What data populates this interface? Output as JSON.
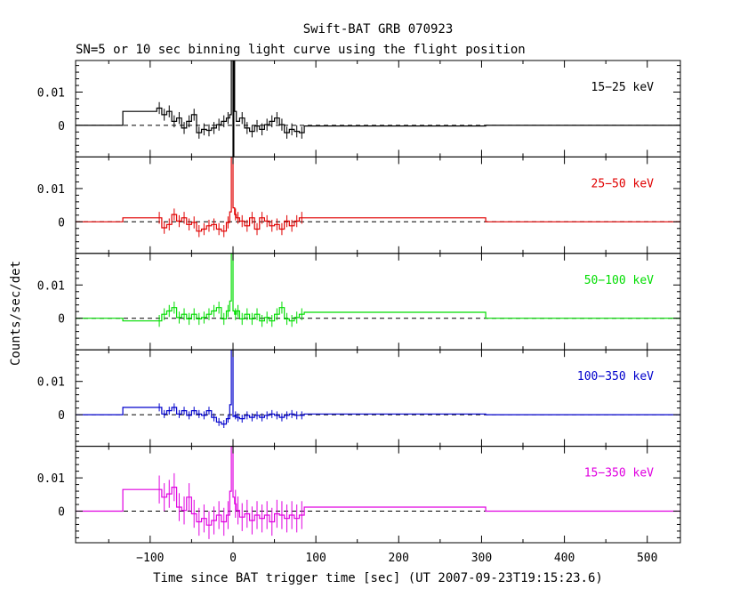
{
  "title": "Swift-BAT GRB 070923",
  "subtitle": "SN=5 or 10 sec binning light curve using the flight position",
  "chart_data": {
    "type": "line",
    "title": "Swift-BAT GRB 070923",
    "subtitle": "SN=5 or 10 sec binning light curve using the flight position",
    "xlabel": "Time since BAT trigger time [sec] (UT 2007-09-23T19:15:23.6)",
    "ylabel": "Counts/sec/det",
    "xlim": [
      -190,
      540
    ],
    "ylim": [
      -0.0095,
      0.0195
    ],
    "x_ticks": [
      -100,
      0,
      100,
      200,
      300,
      400,
      500
    ],
    "x_tick_labels": [
      "−100",
      "0",
      "100",
      "200",
      "300",
      "400",
      "500"
    ],
    "y_ticks": [
      0,
      0.01
    ],
    "y_tick_labels": [
      "0",
      "0.01"
    ],
    "panels": [
      {
        "label": "15−25 keV",
        "color": "#000000",
        "edges": [
          -190,
          -133,
          -92,
          -86,
          -80,
          -74,
          -68,
          -62,
          -56,
          -50,
          -44,
          -38,
          -32,
          -26,
          -20,
          -14,
          -8,
          -4,
          -2,
          -1,
          0,
          1,
          2,
          4,
          8,
          14,
          20,
          26,
          32,
          38,
          44,
          50,
          56,
          62,
          68,
          74,
          80,
          86,
          305,
          540
        ],
        "values": [
          0,
          0.0042,
          0.0052,
          0.0032,
          0.0042,
          0.0012,
          0.0022,
          -0.0008,
          0.0012,
          0.0032,
          -0.0022,
          -0.0012,
          -0.0015,
          -0.0008,
          0.0002,
          0.0012,
          0.0022,
          0.0032,
          0.0195,
          0.0195,
          -0.0098,
          0.0195,
          0.0042,
          0.0012,
          0.0022,
          -0.0008,
          -0.0018,
          -0.0002,
          -0.0012,
          0.0002,
          0.0012,
          0.0022,
          0.0002,
          -0.0022,
          -0.0012,
          -0.0018,
          -0.0022,
          -0.0002,
          0
        ],
        "errors": [
          0,
          0,
          0.0018,
          0.0018,
          0.0018,
          0.0018,
          0.0018,
          0.0018,
          0.0018,
          0.0018,
          0.0018,
          0.0018,
          0.0018,
          0.0018,
          0.0018,
          0.0018,
          0.0018,
          0,
          0,
          0,
          0,
          0,
          0,
          0,
          0.0018,
          0.0018,
          0.0018,
          0.0018,
          0.0018,
          0.0018,
          0.0018,
          0.0018,
          0.0018,
          0.0018,
          0.0018,
          0.0018,
          0.0018,
          0,
          0
        ]
      },
      {
        "label": "25−50 keV",
        "color": "#e00000",
        "edges": [
          -190,
          -133,
          -92,
          -86,
          -80,
          -74,
          -68,
          -62,
          -56,
          -50,
          -44,
          -38,
          -32,
          -26,
          -20,
          -14,
          -8,
          -4,
          -2,
          0,
          2,
          4,
          8,
          14,
          20,
          26,
          32,
          38,
          44,
          50,
          56,
          62,
          68,
          74,
          80,
          86,
          305,
          540
        ],
        "values": [
          0,
          0.0012,
          0.0012,
          -0.0018,
          -0.0008,
          0.0022,
          0.0002,
          0.0012,
          -0.0008,
          -0.0002,
          -0.0028,
          -0.0022,
          -0.0012,
          -0.0008,
          -0.0022,
          -0.0028,
          -0.0002,
          0.003,
          0.0195,
          0.0042,
          0.0022,
          0.0012,
          0.0002,
          -0.0012,
          0.0012,
          -0.0022,
          0.0012,
          0.0002,
          -0.0012,
          -0.0008,
          -0.0022,
          0.0002,
          -0.0012,
          0.0002,
          0.0012,
          0.0012,
          0
        ],
        "errors": [
          0,
          0,
          0.0018,
          0.0018,
          0.0018,
          0.0018,
          0.0018,
          0.0018,
          0.0018,
          0.0018,
          0.0018,
          0.0018,
          0.0018,
          0.0018,
          0.0018,
          0.0018,
          0.0018,
          0,
          0,
          0,
          0.0018,
          0.0018,
          0.0018,
          0.0018,
          0.0018,
          0.0018,
          0.0018,
          0.0018,
          0.0018,
          0.0018,
          0.0018,
          0.0018,
          0.0018,
          0.0018,
          0.0018,
          0,
          0
        ]
      },
      {
        "label": "50−100 keV",
        "color": "#00dd00",
        "edges": [
          -190,
          -133,
          -92,
          -86,
          -80,
          -74,
          -68,
          -62,
          -56,
          -50,
          -44,
          -38,
          -32,
          -26,
          -20,
          -14,
          -8,
          -4,
          -2,
          0,
          2,
          4,
          8,
          14,
          20,
          26,
          32,
          38,
          44,
          50,
          56,
          62,
          68,
          74,
          80,
          86,
          305,
          540
        ],
        "values": [
          0,
          -0.0008,
          -0.0008,
          0.0012,
          0.0022,
          0.0032,
          0.0002,
          0.0012,
          -0.0002,
          0.0012,
          -0.0002,
          0.0002,
          0.0012,
          0.0022,
          0.0032,
          -0.0002,
          0.0022,
          0.0052,
          0.0195,
          0.0022,
          0.0012,
          0.0022,
          -0.0002,
          0.0012,
          -0.0002,
          0.0012,
          -0.0008,
          0.0002,
          -0.0008,
          0.0012,
          0.0032,
          -0.0002,
          -0.0008,
          0.0002,
          0.0012,
          0.0018,
          0
        ],
        "errors": [
          0,
          0,
          0.0018,
          0.0018,
          0.0018,
          0.0018,
          0.0018,
          0.0018,
          0.0018,
          0.0018,
          0.0018,
          0.0018,
          0.0018,
          0.0018,
          0.0018,
          0.0018,
          0.0018,
          0,
          0,
          0,
          0.0018,
          0.0018,
          0.0018,
          0.0018,
          0.0018,
          0.0018,
          0.0018,
          0.0018,
          0.0018,
          0.0018,
          0.0018,
          0.0018,
          0.0018,
          0.0018,
          0.0018,
          0,
          0
        ]
      },
      {
        "label": "100−350 keV",
        "color": "#0000cc",
        "edges": [
          -190,
          -133,
          -92,
          -86,
          -80,
          -74,
          -68,
          -62,
          -56,
          -50,
          -44,
          -38,
          -32,
          -26,
          -20,
          -14,
          -8,
          -4,
          -2,
          0,
          2,
          4,
          8,
          14,
          20,
          26,
          32,
          38,
          44,
          50,
          56,
          62,
          68,
          74,
          80,
          86,
          305,
          540
        ],
        "values": [
          0,
          0.0022,
          0.0022,
          0.0002,
          0.0012,
          0.0022,
          0.0002,
          0.0012,
          -0.0002,
          0.0012,
          0.0002,
          -0.0002,
          0.0012,
          -0.0008,
          -0.0022,
          -0.0028,
          -0.0012,
          0.003,
          0.0195,
          -0.0005,
          -0.0002,
          -0.0008,
          -0.0012,
          -0.0002,
          -0.0008,
          -0.0002,
          -0.0008,
          -0.0002,
          0.0002,
          -0.0002,
          -0.0008,
          -0.0002,
          0.0002,
          -0.0002,
          -0.0002,
          0.0002,
          0
        ],
        "errors": [
          0,
          0,
          0.0012,
          0.0012,
          0.0012,
          0.0012,
          0.0012,
          0.0012,
          0.0012,
          0.0012,
          0.0012,
          0.0012,
          0.0012,
          0.0012,
          0.0012,
          0.0012,
          0.0012,
          0,
          0,
          0,
          0.0012,
          0.0012,
          0.0012,
          0.0012,
          0.0012,
          0.0012,
          0.0012,
          0.0012,
          0.0012,
          0.0012,
          0.0012,
          0.0012,
          0.0012,
          0.0012,
          0.0012,
          0,
          0
        ]
      },
      {
        "label": "15−350 keV",
        "color": "#e000e0",
        "edges": [
          -190,
          -133,
          -92,
          -86,
          -80,
          -74,
          -68,
          -62,
          -56,
          -50,
          -44,
          -38,
          -32,
          -26,
          -20,
          -14,
          -8,
          -4,
          -2,
          0,
          2,
          4,
          8,
          14,
          20,
          26,
          32,
          38,
          44,
          50,
          56,
          62,
          68,
          74,
          80,
          86,
          305,
          540
        ],
        "values": [
          0,
          0.0065,
          0.0065,
          0.0042,
          0.0052,
          0.0072,
          0.0012,
          0.0002,
          0.0042,
          -0.0008,
          -0.0032,
          -0.0022,
          -0.0042,
          -0.0028,
          -0.0012,
          -0.0032,
          -0.0012,
          0.006,
          0.0195,
          0.0042,
          0.0022,
          0.0002,
          -0.0018,
          -0.0008,
          -0.0028,
          -0.0012,
          -0.0022,
          -0.0012,
          -0.0032,
          -0.0008,
          -0.0012,
          -0.0022,
          -0.0012,
          -0.0022,
          -0.0012,
          0.0012,
          0
        ],
        "errors": [
          0,
          0,
          0.0042,
          0.0042,
          0.0042,
          0.0042,
          0.0042,
          0.0042,
          0.0042,
          0.0042,
          0.0042,
          0.0042,
          0.0042,
          0.0042,
          0.0042,
          0.0042,
          0.0042,
          0,
          0,
          0,
          0.0042,
          0.0042,
          0.0042,
          0.0042,
          0.0042,
          0.0042,
          0.0042,
          0.0042,
          0.0042,
          0.0042,
          0.0042,
          0.0042,
          0.0042,
          0.0042,
          0.0042,
          0,
          0
        ]
      }
    ]
  }
}
